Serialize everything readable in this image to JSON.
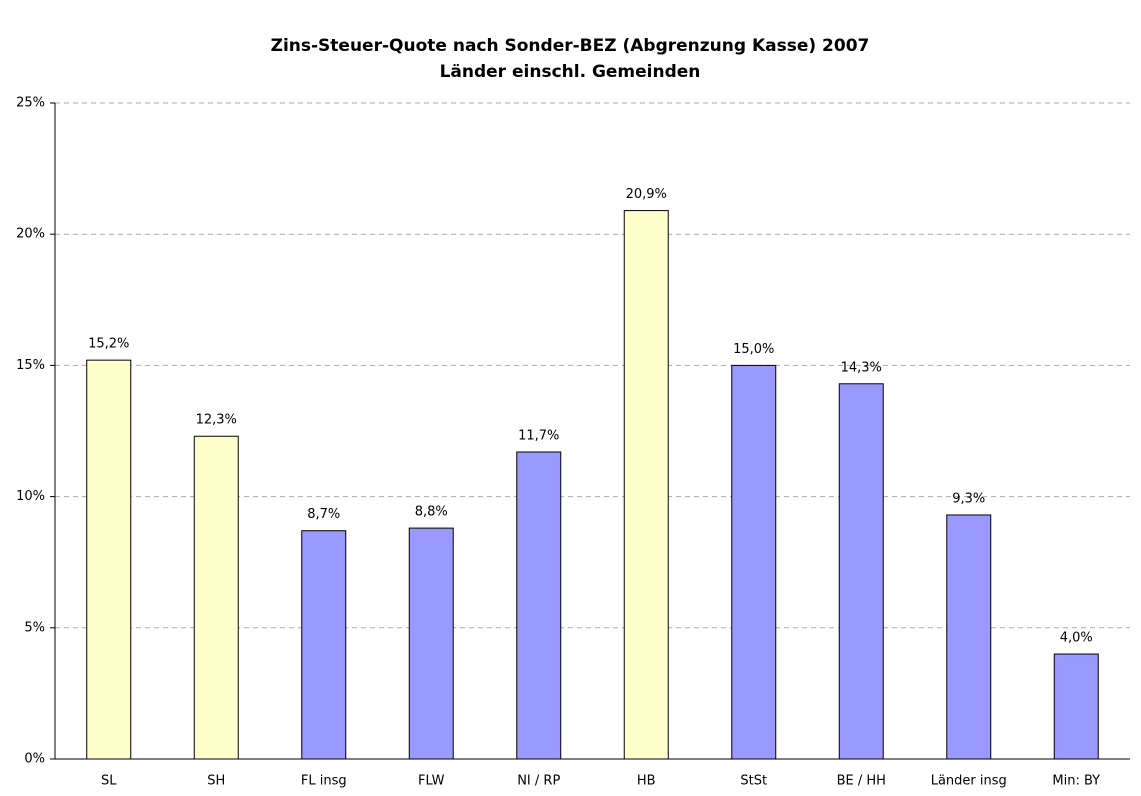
{
  "chart_data": {
    "type": "bar",
    "title": "Zins-Steuer-Quote nach Sonder-BEZ (Abgrenzung Kasse) 2007",
    "subtitle": "Länder einschl. Gemeinden",
    "categories": [
      "SL",
      "SH",
      "FL insg",
      "FLW",
      "NI / RP",
      "HB",
      "StSt",
      "BE / HH",
      "Länder insg",
      "Min: BY"
    ],
    "values": [
      15.2,
      12.3,
      8.7,
      8.8,
      11.7,
      20.9,
      15.0,
      14.3,
      9.3,
      4.0
    ],
    "value_labels": [
      "15,2%",
      "12,3%",
      "8,7%",
      "8,8%",
      "11,7%",
      "20,9%",
      "15,0%",
      "14,3%",
      "9,3%",
      "4,0%"
    ],
    "colors": [
      "#ffffcc",
      "#ffffcc",
      "#9999ff",
      "#9999ff",
      "#9999ff",
      "#ffffcc",
      "#9999ff",
      "#9999ff",
      "#9999ff",
      "#9999ff"
    ],
    "ylim": [
      0,
      25
    ],
    "yticks": [
      {
        "value": 0,
        "label": "0%"
      },
      {
        "value": 5,
        "label": "5%"
      },
      {
        "value": 10,
        "label": "10%"
      },
      {
        "value": 15,
        "label": "15%"
      },
      {
        "value": 20,
        "label": "20%"
      },
      {
        "value": 25,
        "label": "25%"
      }
    ],
    "grid": true
  }
}
